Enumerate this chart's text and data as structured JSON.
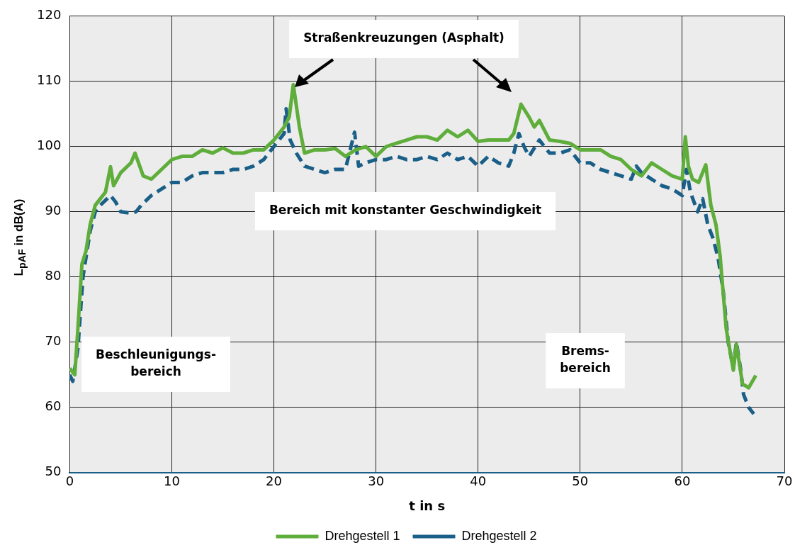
{
  "chart_data": {
    "type": "line",
    "xlabel": "t in s",
    "ylabel": "L$_{pAF}$ in dB(A)",
    "xlim": [
      0,
      70
    ],
    "xticks": [
      0,
      10,
      20,
      30,
      40,
      50,
      60,
      70
    ],
    "ylim": [
      50,
      120
    ],
    "yticks": [
      50,
      60,
      70,
      80,
      90,
      100,
      110,
      120
    ],
    "grid": true,
    "legend": "bottom",
    "marker": "none",
    "annotations": [
      "Straßenkreuzungen (Asphalt)",
      "Bereich mit konstanter Geschwindigkeit",
      "Beschleunigungs-\nbereich",
      "Brems-\nbereich"
    ],
    "series": [
      {
        "name": "Drehgestell 1",
        "color": "#5fad3a",
        "line_style": "solid",
        "x": [
          0,
          0.5,
          0.8,
          1.2,
          1.6,
          2,
          2.5,
          3,
          3.5,
          4,
          4.3,
          5,
          6,
          6.4,
          7.2,
          8,
          9,
          10,
          11,
          12,
          13,
          14,
          15,
          16,
          17,
          18,
          19,
          20,
          21,
          21.5,
          21.9,
          22.5,
          23,
          24,
          25,
          26,
          27,
          28,
          29,
          30,
          31,
          32,
          33,
          34,
          35,
          36,
          37,
          38,
          39,
          40,
          41,
          42,
          43,
          43.5,
          44.2,
          45,
          45.5,
          46,
          47,
          48,
          49,
          50,
          51,
          52,
          53,
          54,
          55,
          56,
          57,
          58,
          59,
          60,
          60.3,
          60.6,
          61,
          61.6,
          62.3,
          62.8,
          63.3,
          63.7,
          64.3,
          65,
          65.3,
          65.9,
          66.5,
          67.2
        ],
        "values": [
          66,
          65,
          72,
          82,
          84,
          88,
          91,
          92,
          93,
          96.9,
          94,
          96,
          97.5,
          99,
          95.5,
          95,
          96.5,
          98,
          98.5,
          98.5,
          99.5,
          99,
          99.8,
          99,
          99,
          99.5,
          99.5,
          101,
          103,
          104.5,
          109.5,
          103,
          99,
          99.5,
          99.5,
          99.7,
          98.5,
          99.5,
          100,
          98.5,
          100,
          100.5,
          101,
          101.5,
          101.5,
          101,
          102.5,
          101.5,
          102.5,
          100.8,
          101,
          101,
          101,
          102,
          106.5,
          104.5,
          103,
          104,
          101,
          100.8,
          100.5,
          99.5,
          99.5,
          99.5,
          98.5,
          98,
          96.5,
          95.5,
          97.5,
          96.5,
          95.5,
          95,
          101.5,
          97,
          95,
          94.5,
          97.2,
          91,
          88,
          83.3,
          72.1,
          65.7,
          69.7,
          63.6,
          63,
          64.9
        ]
      },
      {
        "name": "Drehgestell 2",
        "color": "#1a5f87",
        "line_style": "dashed",
        "x": [
          0,
          0.3,
          0.8,
          1.3,
          2,
          2.5,
          3,
          4,
          4.5,
          5,
          6,
          6.5,
          7,
          8,
          9,
          10,
          11,
          12,
          13,
          14,
          15,
          16,
          17,
          18,
          19,
          20,
          21,
          21.2,
          21.6,
          22.2,
          23,
          24,
          25,
          26,
          27,
          27.9,
          28.3,
          29,
          30,
          31,
          32,
          33,
          34,
          35,
          36,
          37,
          38,
          39,
          40,
          41,
          42,
          43,
          43.5,
          44,
          44.5,
          45,
          46,
          47,
          48,
          49,
          50,
          51,
          52,
          53,
          54,
          55,
          55.5,
          56,
          57,
          58,
          59,
          60,
          60.4,
          60.8,
          61.5,
          62,
          62.5,
          63,
          63.5,
          64,
          64.5,
          65,
          65.3,
          65.7,
          66,
          66.5,
          67
        ],
        "values": [
          65,
          64,
          69,
          80,
          87,
          90,
          91,
          92.5,
          91.5,
          90,
          89.8,
          90,
          91,
          92.5,
          93.5,
          94.5,
          94.5,
          95.5,
          96,
          96,
          96,
          96.5,
          96.5,
          97,
          98,
          100,
          102,
          105.8,
          101,
          99,
          97,
          96.5,
          96,
          96.5,
          96.5,
          102.2,
          97,
          97.5,
          98,
          98,
          98.5,
          98,
          98,
          98.5,
          98,
          99,
          98,
          98.5,
          97,
          98.5,
          97.5,
          97,
          99,
          102,
          100,
          98.5,
          101,
          99,
          99,
          99.5,
          97.5,
          97.5,
          96.5,
          96,
          95.5,
          95,
          97,
          96,
          95,
          94,
          93.5,
          92.5,
          96.5,
          93,
          90,
          92,
          88,
          86,
          83,
          78,
          70,
          66,
          70,
          66,
          62,
          60,
          59
        ]
      }
    ]
  }
}
